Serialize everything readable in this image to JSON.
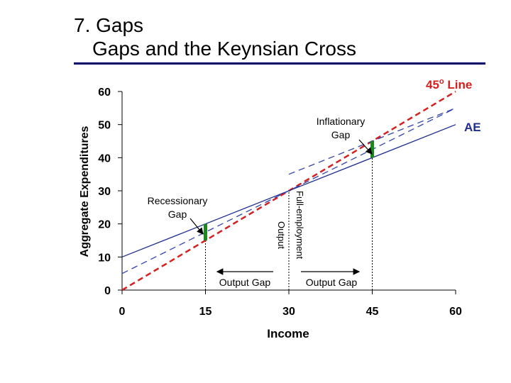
{
  "slide": {
    "title_line1": "7. Gaps",
    "title_line2": "Gaps and the Keynsian Cross"
  },
  "colors": {
    "rule": "#000066",
    "ae_line": "#1f2f8f",
    "ae_dashed": "#3344aa",
    "line45": "#d42020",
    "gap_bar": "#1a8a1a",
    "axis": "#000000",
    "guide": "#000000"
  },
  "chart_data": {
    "type": "line",
    "xlabel": "Income",
    "ylabel": "Aggregate Expenditures",
    "xlim": [
      0,
      60
    ],
    "ylim": [
      0,
      60
    ],
    "x_ticks": [
      0,
      15,
      30,
      45,
      60
    ],
    "y_ticks": [
      0,
      10,
      20,
      30,
      40,
      50,
      60
    ],
    "grid": false,
    "series": [
      {
        "name": "45o Line",
        "style": "dashed",
        "x": [
          0,
          60
        ],
        "y": [
          0,
          60
        ]
      },
      {
        "name": "AE",
        "style": "solid",
        "x": [
          0,
          60
        ],
        "y": [
          10,
          50
        ]
      },
      {
        "name": "",
        "style": "dashed",
        "x": [
          0,
          60
        ],
        "y": [
          5,
          55
        ]
      },
      {
        "name": "",
        "style": "dashed",
        "x": [
          30,
          60
        ],
        "y": [
          35,
          55
        ]
      }
    ],
    "gap_bars": [
      {
        "x": 15,
        "y_from": 15,
        "y_to": 20
      },
      {
        "x": 45,
        "y_from": 40,
        "y_to": 45
      }
    ],
    "guides": [
      {
        "x": 15,
        "y_top": 15
      },
      {
        "x": 30,
        "y_top": 30
      },
      {
        "x": 45,
        "y_top": 40
      }
    ],
    "annotations": {
      "line45_label": "45",
      "line45_sup": "o",
      "line45_word": " Line",
      "ae_label": "AE",
      "inflationary_1": "Inflationary",
      "inflationary_2": "Gap",
      "recessionary_1": "Recessionary",
      "recessionary_2": "Gap",
      "fe_1": "Full-employment",
      "fe_2": "Output",
      "output_gap_left": "Output Gap",
      "output_gap_right": "Output Gap"
    }
  }
}
